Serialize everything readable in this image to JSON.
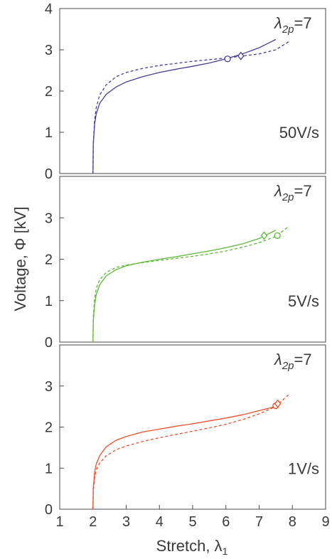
{
  "xlabel": "Stretch, λ",
  "xlabel_sub": "1",
  "ylabel": "Voltage, Φ [kV]",
  "chart_data": [
    {
      "type": "line",
      "annotation": {
        "label": "λ",
        "sub": "2p",
        "eq": "=7"
      },
      "rate_label": "50V/s",
      "color": "#4b3d96",
      "xlim": [
        1,
        9
      ],
      "ylim": [
        0,
        4
      ],
      "yticks": [
        0,
        1,
        2,
        3,
        4
      ],
      "series": [
        {
          "style": "solid",
          "x": [
            2.0,
            2.01,
            2.05,
            2.1,
            2.2,
            2.4,
            2.7,
            3.0,
            3.5,
            4.0,
            4.5,
            5.0,
            5.5,
            6.0,
            6.5,
            7.0,
            7.5
          ],
          "y": [
            0.0,
            0.7,
            1.2,
            1.45,
            1.7,
            1.92,
            2.1,
            2.22,
            2.35,
            2.45,
            2.53,
            2.6,
            2.68,
            2.78,
            2.9,
            3.05,
            3.25
          ]
        },
        {
          "style": "dashed",
          "x": [
            2.0,
            2.01,
            2.05,
            2.1,
            2.2,
            2.4,
            2.7,
            3.0,
            3.5,
            4.0,
            4.5,
            5.0,
            5.5,
            6.0,
            6.5,
            7.0,
            7.5,
            7.9
          ],
          "y": [
            0.0,
            0.7,
            1.3,
            1.6,
            1.9,
            2.15,
            2.35,
            2.45,
            2.55,
            2.62,
            2.67,
            2.72,
            2.76,
            2.8,
            2.85,
            2.9,
            3.0,
            3.2
          ]
        }
      ],
      "markers": [
        {
          "shape": "circle",
          "x": 6.05,
          "y": 2.78
        },
        {
          "shape": "diamond",
          "x": 6.45,
          "y": 2.85
        }
      ]
    },
    {
      "type": "line",
      "annotation": {
        "label": "λ",
        "sub": "2p",
        "eq": "=7"
      },
      "rate_label": "5V/s",
      "color": "#5fb83a",
      "xlim": [
        1,
        9
      ],
      "ylim": [
        0,
        4
      ],
      "yticks": [
        0,
        1,
        2,
        3
      ],
      "series": [
        {
          "style": "solid",
          "x": [
            2.0,
            2.01,
            2.05,
            2.1,
            2.2,
            2.4,
            2.7,
            3.0,
            3.5,
            4.0,
            4.5,
            5.0,
            5.5,
            6.0,
            6.5,
            7.0,
            7.5
          ],
          "y": [
            0.0,
            0.5,
            0.9,
            1.15,
            1.38,
            1.6,
            1.75,
            1.84,
            1.93,
            2.0,
            2.06,
            2.13,
            2.2,
            2.28,
            2.37,
            2.5,
            2.7
          ]
        },
        {
          "style": "dashed",
          "x": [
            2.0,
            2.01,
            2.05,
            2.1,
            2.2,
            2.4,
            2.7,
            3.0,
            3.5,
            4.0,
            4.5,
            5.0,
            5.5,
            6.0,
            6.5,
            7.0,
            7.5,
            7.9
          ],
          "y": [
            0.0,
            0.6,
            1.05,
            1.3,
            1.5,
            1.68,
            1.8,
            1.86,
            1.92,
            1.97,
            2.02,
            2.07,
            2.13,
            2.2,
            2.29,
            2.4,
            2.55,
            2.8
          ]
        }
      ],
      "markers": [
        {
          "shape": "diamond",
          "x": 7.15,
          "y": 2.57
        },
        {
          "shape": "circle",
          "x": 7.55,
          "y": 2.57
        }
      ]
    },
    {
      "type": "line",
      "annotation": {
        "label": "λ",
        "sub": "2p",
        "eq": "=7"
      },
      "rate_label": "1V/s",
      "color": "#e8502a",
      "xlim": [
        1,
        9
      ],
      "ylim": [
        0,
        4
      ],
      "yticks": [
        0,
        1,
        2,
        3
      ],
      "xticks": [
        1,
        2,
        3,
        4,
        5,
        6,
        7,
        8,
        9
      ],
      "series": [
        {
          "style": "solid",
          "x": [
            2.0,
            2.01,
            2.05,
            2.1,
            2.2,
            2.4,
            2.7,
            3.0,
            3.5,
            4.0,
            4.5,
            5.0,
            5.5,
            6.0,
            6.5,
            7.0,
            7.5
          ],
          "y": [
            0.0,
            0.5,
            0.9,
            1.1,
            1.3,
            1.52,
            1.68,
            1.77,
            1.88,
            1.95,
            2.02,
            2.08,
            2.15,
            2.22,
            2.3,
            2.4,
            2.5
          ]
        },
        {
          "style": "dashed",
          "x": [
            2.0,
            2.01,
            2.05,
            2.1,
            2.2,
            2.4,
            2.7,
            3.0,
            3.5,
            4.0,
            4.5,
            5.0,
            5.5,
            6.0,
            6.5,
            7.0,
            7.5,
            7.9
          ],
          "y": [
            0.0,
            0.45,
            0.75,
            0.95,
            1.12,
            1.3,
            1.45,
            1.54,
            1.65,
            1.74,
            1.82,
            1.9,
            1.98,
            2.07,
            2.18,
            2.32,
            2.5,
            2.8
          ]
        }
      ],
      "markers": [
        {
          "shape": "circle",
          "x": 7.5,
          "y": 2.52
        },
        {
          "shape": "diamond",
          "x": 7.56,
          "y": 2.57
        }
      ]
    }
  ]
}
